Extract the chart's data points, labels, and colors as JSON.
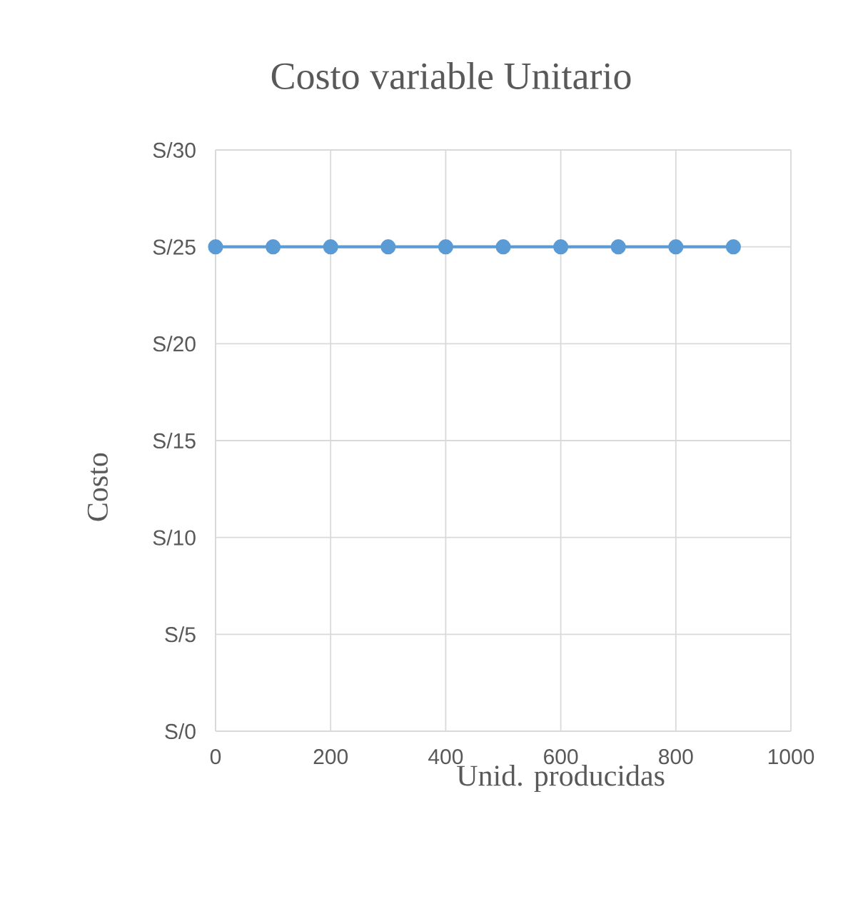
{
  "chart_data": {
    "type": "line",
    "title": "Costo variable Unitario",
    "xlabel": "Unid. producidas",
    "ylabel": "Costo",
    "x": [
      0,
      100,
      200,
      300,
      400,
      500,
      600,
      700,
      800,
      900
    ],
    "series": [
      {
        "color": "#5b9bd5",
        "values": [
          25,
          25,
          25,
          25,
          25,
          25,
          25,
          25,
          25,
          25
        ]
      }
    ],
    "xlim": [
      0,
      1000
    ],
    "xticks": [
      0,
      200,
      400,
      600,
      800,
      1000
    ],
    "ylim": [
      0,
      30
    ],
    "yticks": [
      {
        "value": 0,
        "label": "S/0"
      },
      {
        "value": 5,
        "label": "S/5"
      },
      {
        "value": 10,
        "label": "S/10"
      },
      {
        "value": 15,
        "label": "S/15"
      },
      {
        "value": 20,
        "label": "S/20"
      },
      {
        "value": 25,
        "label": "S/25"
      },
      {
        "value": 30,
        "label": "S/30"
      }
    ],
    "grid": true,
    "marker": "circle",
    "line_style": "solid",
    "legend": false
  }
}
